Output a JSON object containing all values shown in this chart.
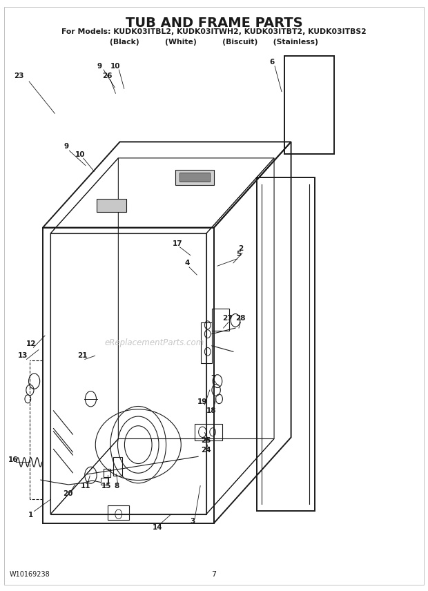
{
  "title": "TUB AND FRAME PARTS",
  "subtitle1": "For Models: KUDK03ITBL2, KUDK03ITWH2, KUDK03ITBT2, KUDK03ITBS2",
  "subtitle2": "(Black)          (White)          (Biscuit)      (Stainless)",
  "footer_left": "W10169238",
  "footer_center": "7",
  "bg_color": "#ffffff",
  "line_color": "#1a1a1a",
  "watermark_text": "eReplacementParts.com",
  "watermark_color": "#cccccc"
}
